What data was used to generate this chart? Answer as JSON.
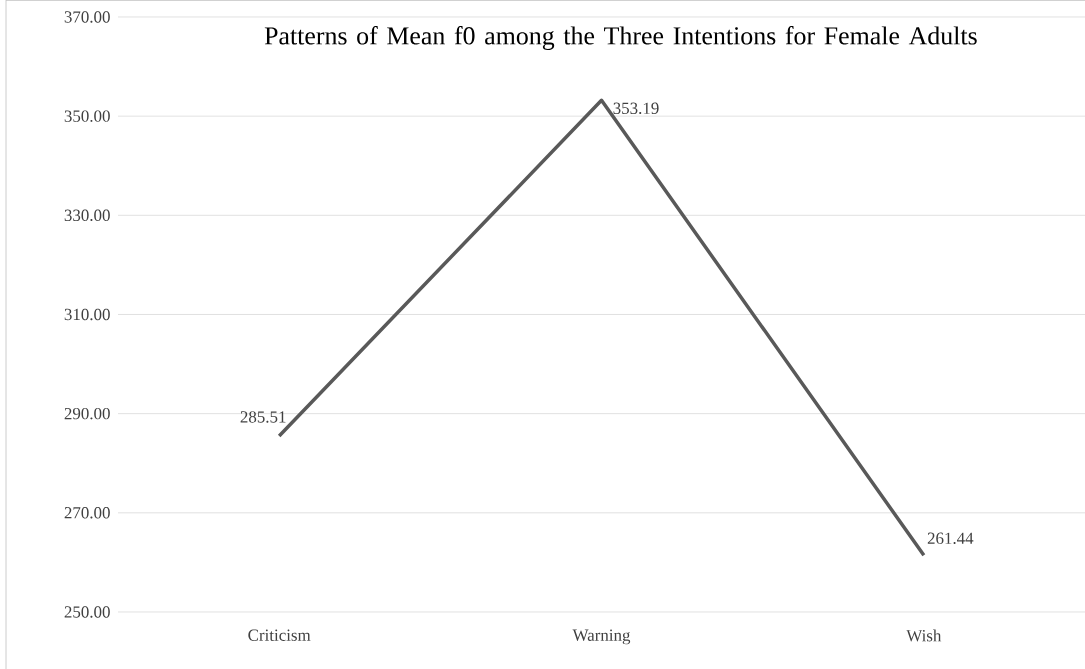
{
  "chart_data": {
    "type": "line",
    "title": "Patterns of Mean f0 among the Three Intentions for Female Adults",
    "categories": [
      "Criticism",
      "Warning",
      "Wish"
    ],
    "series": [
      {
        "color": "#595959",
        "values": [
          285.51,
          353.19,
          261.44
        ],
        "value_labels": [
          "285.51",
          "353.19",
          "261.44"
        ]
      }
    ],
    "ylim": [
      250,
      370
    ],
    "yticks": [
      {
        "value": 250,
        "label": "250.00"
      },
      {
        "value": 270,
        "label": "270.00"
      },
      {
        "value": 290,
        "label": "290.00"
      },
      {
        "value": 310,
        "label": "310.00"
      },
      {
        "value": 330,
        "label": "330.00"
      },
      {
        "value": 350,
        "label": "350.00"
      },
      {
        "value": 370,
        "label": "370.00"
      }
    ],
    "grid": "y",
    "marker": "none",
    "line_style": "solid"
  }
}
